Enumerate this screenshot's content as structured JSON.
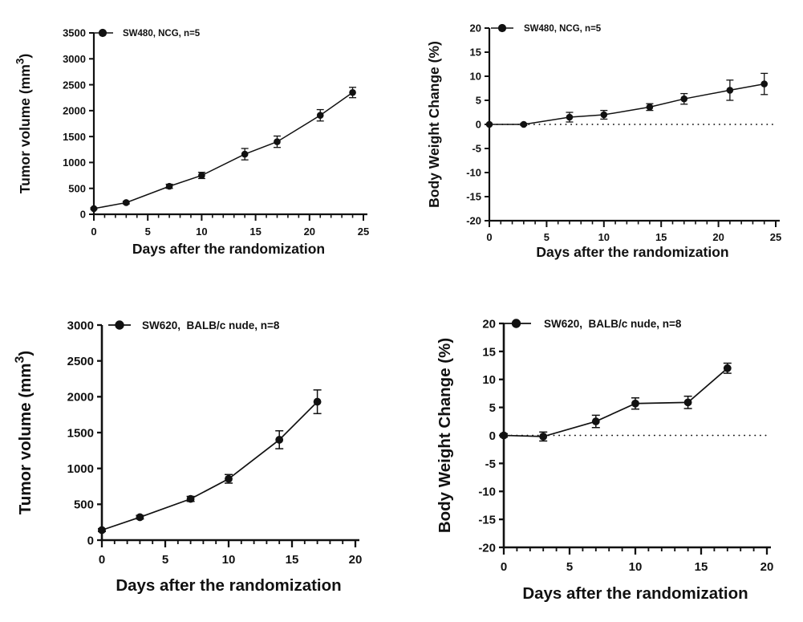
{
  "page": {
    "background": "#ffffff",
    "ink_color": "#111111"
  },
  "chart_data": [
    {
      "name": "sw480-tumor-volume",
      "type": "line",
      "legend": "SW480, NCG, n=5",
      "xlabel": "Days after the randomization",
      "ylabel": "Tumor volume (mm³)",
      "x": [
        0,
        3,
        7,
        10,
        14,
        17,
        21,
        24
      ],
      "y": [
        110,
        225,
        540,
        750,
        1160,
        1400,
        1910,
        2350
      ],
      "err": [
        15,
        25,
        40,
        60,
        110,
        110,
        110,
        100
      ],
      "xlim": [
        0,
        25
      ],
      "xtick_major": 5,
      "xtick_minor": 1,
      "ylim": [
        0,
        3500
      ],
      "ytick": 500,
      "zero_line": false,
      "marker": "filled-circle",
      "color": "#111111",
      "legend_position": "top-left",
      "grid": false
    },
    {
      "name": "sw480-body-weight-change",
      "type": "line",
      "legend": "SW480, NCG, n=5",
      "xlabel": "Days after the randomization",
      "ylabel": "Body Weight Change (%)",
      "x": [
        0,
        3,
        7,
        10,
        14,
        17,
        21,
        24
      ],
      "y": [
        0,
        0,
        1.5,
        2.0,
        3.6,
        5.3,
        7.1,
        8.4
      ],
      "err": [
        0,
        0.2,
        1.0,
        0.9,
        0.7,
        1.1,
        2.1,
        2.2
      ],
      "xlim": [
        0,
        25
      ],
      "xtick_major": 5,
      "xtick_minor": 1,
      "ylim": [
        -20,
        20
      ],
      "ytick": 5,
      "zero_line": true,
      "marker": "filled-circle",
      "color": "#111111",
      "legend_position": "top-left",
      "grid": false
    },
    {
      "name": "sw620-tumor-volume",
      "type": "line",
      "legend": "SW620,  BALB/c nude, n=8",
      "xlabel": "Days after the randomization",
      "ylabel": "Tumor volume (mm³)",
      "x": [
        0,
        3,
        7,
        10,
        14,
        17
      ],
      "y": [
        140,
        320,
        575,
        855,
        1400,
        1930
      ],
      "err": [
        20,
        25,
        35,
        60,
        125,
        165
      ],
      "xlim": [
        0,
        20
      ],
      "xtick_major": 5,
      "xtick_minor": 1,
      "ylim": [
        0,
        3000
      ],
      "ytick": 500,
      "zero_line": false,
      "marker": "filled-circle",
      "color": "#111111",
      "legend_position": "top-left",
      "grid": false
    },
    {
      "name": "sw620-body-weight-change",
      "type": "line",
      "legend": "SW620,  BALB/c nude, n=8",
      "xlabel": "Days after the randomization",
      "ylabel": "Body Weight Change (%)",
      "x": [
        0,
        3,
        7,
        10,
        14,
        17
      ],
      "y": [
        0,
        -0.2,
        2.5,
        5.7,
        5.9,
        12.0
      ],
      "err": [
        0.3,
        0.8,
        1.1,
        1.0,
        1.1,
        0.9
      ],
      "xlim": [
        0,
        20
      ],
      "xtick_major": 5,
      "xtick_minor": 1,
      "ylim": [
        -20,
        20
      ],
      "ytick": 5,
      "zero_line": true,
      "marker": "filled-circle",
      "color": "#111111",
      "legend_position": "top-left",
      "grid": false
    }
  ]
}
